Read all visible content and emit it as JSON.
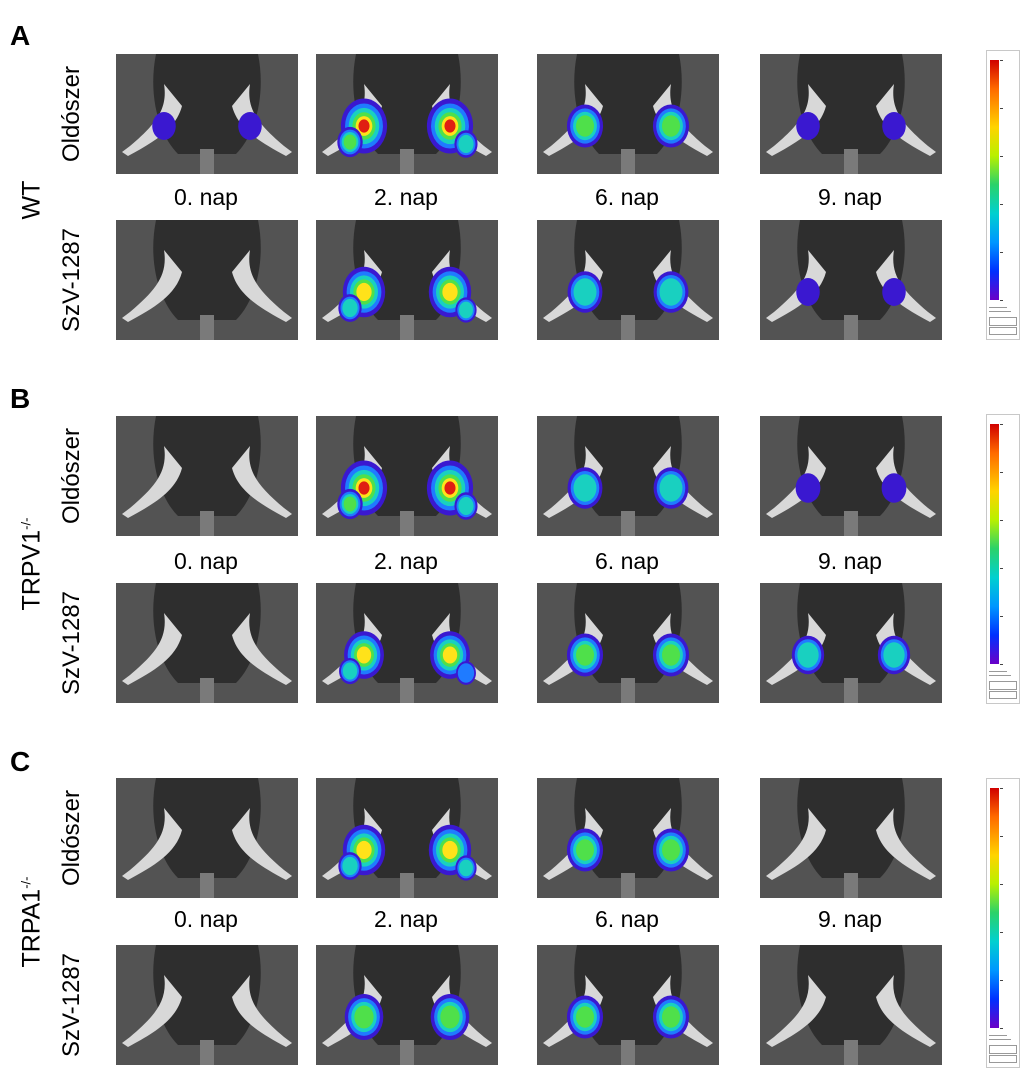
{
  "rows": [
    {
      "letter": "A",
      "group": "WT",
      "group_sup": "",
      "top_treatment": "Oldószer",
      "bottom_treatment": "SzV-1287",
      "days": [
        "0. nap",
        "2. nap",
        "6. nap",
        "9. nap"
      ],
      "top_signal": [
        0.1,
        1.0,
        0.6,
        0.1
      ],
      "bottom_signal": [
        0.0,
        0.85,
        0.55,
        0.1
      ]
    },
    {
      "letter": "B",
      "group": "TRPV1",
      "group_sup": "-/-",
      "top_treatment": "Oldószer",
      "bottom_treatment": "SzV-1287",
      "days": [
        "0. nap",
        "2. nap",
        "6. nap",
        "9. nap"
      ],
      "top_signal": [
        0.0,
        1.0,
        0.55,
        0.15
      ],
      "bottom_signal": [
        0.0,
        0.75,
        0.6,
        0.45
      ]
    },
    {
      "letter": "C",
      "group": "TRPA1",
      "group_sup": "-/-",
      "top_treatment": "Oldószer",
      "bottom_treatment": "SzV-1287",
      "days": [
        "0. nap",
        "2. nap",
        "6. nap",
        "9. nap"
      ],
      "top_signal": [
        0.0,
        0.85,
        0.6,
        0.0
      ],
      "bottom_signal": [
        0.0,
        0.7,
        0.6,
        0.0
      ]
    }
  ],
  "scale_colors": [
    "#d00000",
    "#ffd400",
    "#2ad26a",
    "#0096ff",
    "#6a00c8"
  ],
  "photo_background": "#535353"
}
